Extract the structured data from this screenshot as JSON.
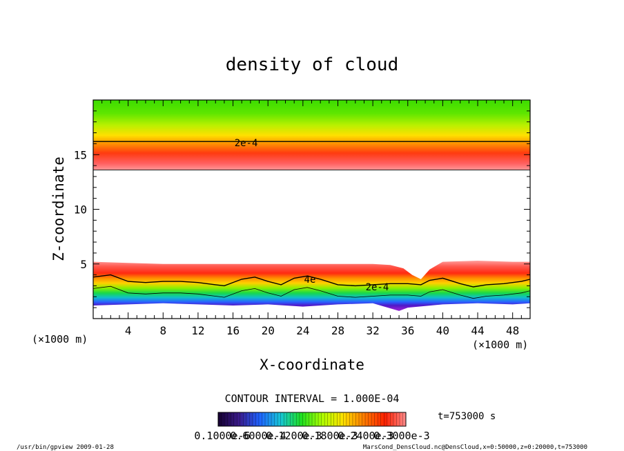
{
  "chart_data": {
    "type": "heatmap",
    "title": "density of cloud",
    "xlabel": "X-coordinate",
    "ylabel": "Z-coordinate",
    "x_unit": "(×1000 m)",
    "y_unit": "(×1000 m)",
    "xlim": [
      0,
      50
    ],
    "ylim": [
      0,
      20
    ],
    "x_ticks": [
      "4",
      "8",
      "12",
      "16",
      "20",
      "24",
      "28",
      "32",
      "36",
      "40",
      "44",
      "48"
    ],
    "y_ticks": [
      "5",
      "10",
      "15"
    ],
    "contour_labels": [
      {
        "text": "2e-4",
        "x": 17.5,
        "y": 16.1
      },
      {
        "text": "2e-4",
        "x": 32.5,
        "y": 2.9
      },
      {
        "text": "4e",
        "x": 24.8,
        "y": 3.6
      }
    ],
    "upper_layer": {
      "bottom": 13.6,
      "contour_2e4": 16.2,
      "top": 20
    },
    "lower_layer_top": [
      [
        0,
        5.2
      ],
      [
        4,
        5.1
      ],
      [
        8,
        5.0
      ],
      [
        12,
        5.0
      ],
      [
        16,
        5.0
      ],
      [
        20,
        5.0
      ],
      [
        24,
        5.0
      ],
      [
        28,
        5.0
      ],
      [
        32,
        5.0
      ],
      [
        34,
        4.9
      ],
      [
        35.5,
        4.6
      ],
      [
        36.5,
        4.0
      ],
      [
        37.5,
        3.6
      ],
      [
        38.5,
        4.5
      ],
      [
        40,
        5.2
      ],
      [
        44,
        5.3
      ],
      [
        48,
        5.2
      ],
      [
        50,
        5.2
      ]
    ],
    "lower_contour_2e4": [
      [
        0,
        3.8
      ],
      [
        2,
        4.0
      ],
      [
        4,
        3.4
      ],
      [
        6,
        3.3
      ],
      [
        8,
        3.4
      ],
      [
        10,
        3.4
      ],
      [
        12,
        3.3
      ],
      [
        14,
        3.1
      ],
      [
        15,
        3.0
      ],
      [
        17,
        3.6
      ],
      [
        18.5,
        3.8
      ],
      [
        20,
        3.4
      ],
      [
        21.5,
        3.1
      ],
      [
        23,
        3.7
      ],
      [
        24.5,
        3.9
      ],
      [
        26,
        3.6
      ],
      [
        28,
        3.1
      ],
      [
        30,
        3.0
      ],
      [
        32,
        3.1
      ],
      [
        34,
        3.2
      ],
      [
        36,
        3.2
      ],
      [
        37.5,
        3.1
      ],
      [
        38.5,
        3.5
      ],
      [
        40,
        3.7
      ],
      [
        42,
        3.2
      ],
      [
        43.5,
        2.9
      ],
      [
        45,
        3.1
      ],
      [
        47,
        3.2
      ],
      [
        49,
        3.4
      ],
      [
        50,
        3.6
      ]
    ],
    "lower_layer_bottom": [
      [
        0,
        1.2
      ],
      [
        4,
        1.3
      ],
      [
        8,
        1.4
      ],
      [
        12,
        1.3
      ],
      [
        16,
        1.2
      ],
      [
        20,
        1.3
      ],
      [
        24,
        1.1
      ],
      [
        28,
        1.3
      ],
      [
        32,
        1.4
      ],
      [
        35,
        0.7
      ],
      [
        36,
        1.0
      ],
      [
        40,
        1.3
      ],
      [
        44,
        1.4
      ],
      [
        48,
        1.3
      ],
      [
        50,
        1.4
      ]
    ],
    "contour_interval": "CONTOUR INTERVAL = 1.000E-04",
    "time_label": "t=753000 s",
    "colorbar_labels": [
      "0.1000e-6",
      "0.6000e-4",
      "0.1200e-3",
      "0.1800e-3",
      "0.2400e-3",
      "0.3000e-3"
    ],
    "colorbar_stops": [
      "#150030",
      "#3a1a8a",
      "#1f63ff",
      "#17c6d6",
      "#1fe020",
      "#b0ff00",
      "#ffe000",
      "#ff7a00",
      "#ff2000",
      "#ff8c8c"
    ]
  },
  "footer": {
    "program": "/usr/bin/gpview  2009-01-28",
    "source": "MarsCond_DensCloud.nc@DensCloud,x=0:50000,z=0:20000,t=753000"
  }
}
